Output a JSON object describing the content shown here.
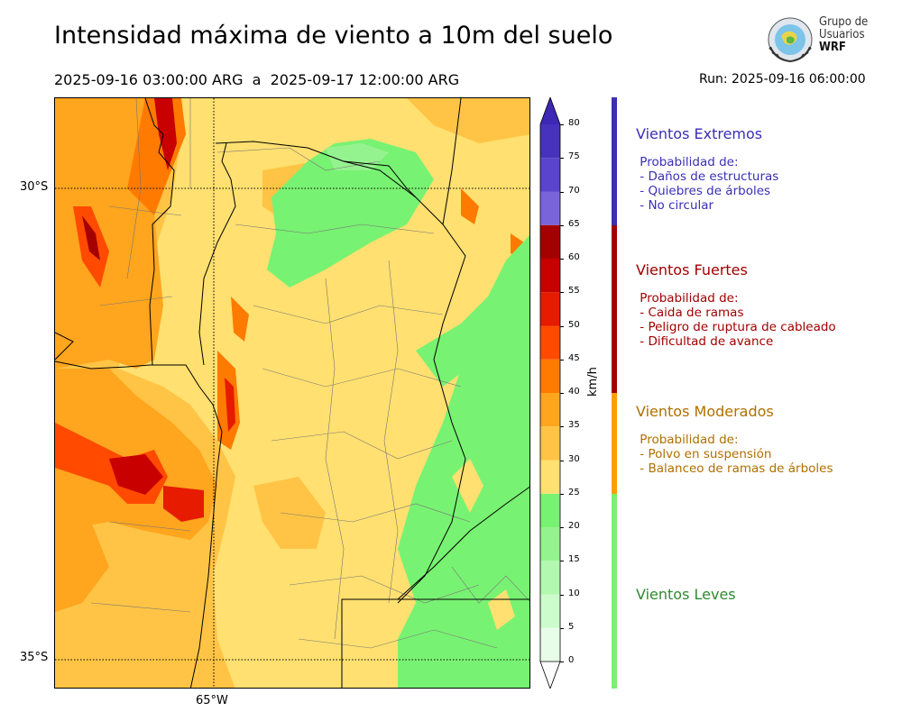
{
  "title": "Intensidad máxima de viento a 10m del suelo",
  "period": "2025-09-16 03:00:00 ARG  a  2025-09-17 12:00:00 ARG",
  "run": "Run: 2025-09-16 06:00:00",
  "logo": {
    "line1": "Grupo de",
    "line2": "Usuarios",
    "line3": "WRF"
  },
  "map": {
    "lat_labels": [
      "30°S",
      "35°S"
    ],
    "lon_labels": [
      "65°W"
    ]
  },
  "colorbar": {
    "units": "km/h",
    "ticks": [
      "0",
      "5",
      "10",
      "15",
      "20",
      "25",
      "30",
      "35",
      "40",
      "45",
      "50",
      "55",
      "60",
      "65",
      "70",
      "75",
      "80"
    ],
    "levels": [
      {
        "from": 0,
        "to": 5,
        "color": "#e8fde8"
      },
      {
        "from": 5,
        "to": 10,
        "color": "#ccfccc"
      },
      {
        "from": 10,
        "to": 15,
        "color": "#b2f8b0"
      },
      {
        "from": 15,
        "to": 20,
        "color": "#95f38f"
      },
      {
        "from": 20,
        "to": 25,
        "color": "#78f272"
      },
      {
        "from": 25,
        "to": 30,
        "color": "#ffe070"
      },
      {
        "from": 30,
        "to": 35,
        "color": "#ffc445"
      },
      {
        "from": 35,
        "to": 40,
        "color": "#ffa51e"
      },
      {
        "from": 40,
        "to": 45,
        "color": "#ff7a00"
      },
      {
        "from": 45,
        "to": 50,
        "color": "#ff4a00"
      },
      {
        "from": 50,
        "to": 55,
        "color": "#e61b00"
      },
      {
        "from": 55,
        "to": 60,
        "color": "#c80000"
      },
      {
        "from": 60,
        "to": 65,
        "color": "#a50000"
      },
      {
        "from": 65,
        "to": 70,
        "color": "#7a64dc"
      },
      {
        "from": 70,
        "to": 75,
        "color": "#5a44cc"
      },
      {
        "from": 75,
        "to": 80,
        "color": "#4632bc"
      }
    ],
    "above_color": "#3c28b4"
  },
  "categories": [
    {
      "title": "Vientos Extremos",
      "color": "#3a2fb5",
      "bar_color": "#3a2fb5",
      "desc": " Probabilidad de:\n - Daños de estructuras\n - Quiebres de árboles\n - No circular"
    },
    {
      "title": "Vientos Fuertes",
      "color": "#a20000",
      "bar_color": "#a20000",
      "desc": " Probabilidad de:\n - Caida de ramas\n - Peligro de ruptura de cableado\n - Dificultad de avance"
    },
    {
      "title": "Vientos Moderados",
      "color": "#b06f00",
      "bar_color": "#ff9e00",
      "desc": " Probabilidad de:\n - Polvo en suspensión\n - Balanceo de ramas de árboles"
    },
    {
      "title": "Vientos Leves",
      "color": "#2f8a2f",
      "bar_color": "#78f272",
      "desc": ""
    }
  ]
}
